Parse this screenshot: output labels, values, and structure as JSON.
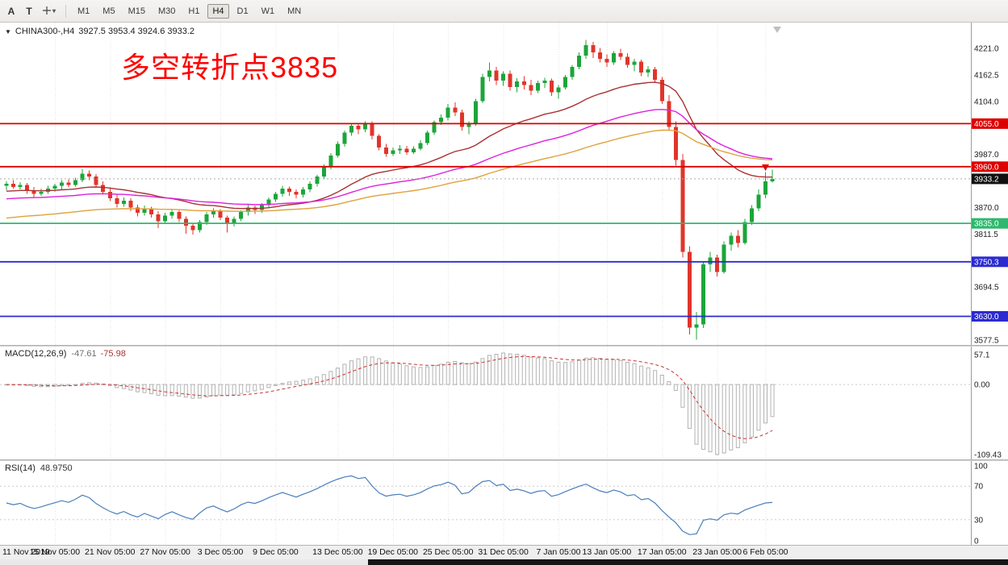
{
  "toolbar": {
    "buttons": [
      {
        "label": "A"
      },
      {
        "label": "T"
      }
    ],
    "dropdown_caret": "▾",
    "timeframes": [
      {
        "label": "M1",
        "active": false
      },
      {
        "label": "M5",
        "active": false
      },
      {
        "label": "M15",
        "active": false
      },
      {
        "label": "M30",
        "active": false
      },
      {
        "label": "H1",
        "active": false
      },
      {
        "label": "H4",
        "active": true
      },
      {
        "label": "D1",
        "active": false
      },
      {
        "label": "W1",
        "active": false
      },
      {
        "label": "MN",
        "active": false
      }
    ]
  },
  "chart_header": {
    "dropdown_glyph": "▼",
    "symbol": "CHINA300-,H4",
    "ohlc": "3927.5 3953.4 3924.6 3933.2"
  },
  "annotation": {
    "text": "多空转折点3835",
    "color": "#ff0000"
  },
  "indicators": {
    "macd_name": "MACD(12,26,9)",
    "macd_main": "-47.61",
    "macd_signal": "-75.98",
    "rsi_name": "RSI(14)",
    "rsi_value": "48.9750"
  },
  "chart_data": {
    "type": "candlestick",
    "symbol": "CHINA300-",
    "timeframe": "H4",
    "current_bar": {
      "open": 3927.5,
      "high": 3953.4,
      "low": 3924.6,
      "close": 3933.2
    },
    "price_axis": {
      "ticks": [
        "4221.0",
        "4162.5",
        "4104.0",
        "3987.0",
        "3870.0",
        "3811.5",
        "3694.5",
        "3577.5"
      ],
      "tick_values": [
        4221.0,
        4162.5,
        4104.0,
        3987.0,
        3870.0,
        3811.5,
        3694.5,
        3577.5
      ]
    },
    "level_lines": [
      {
        "price": 4055.0,
        "label": "4055.0",
        "color": "#dd0000"
      },
      {
        "price": 3960.0,
        "label": "3960.0",
        "color": "#dd0000"
      },
      {
        "price": 3835.0,
        "label": "3835.0",
        "color": "#2eb86e"
      },
      {
        "price": 3750.3,
        "label": "3750.3",
        "color": "#2b2bd0"
      },
      {
        "price": 3630.0,
        "label": "3630.0",
        "color": "#2b2bd0"
      }
    ],
    "current_price": {
      "value": 3933.2,
      "label": "3933.2",
      "box_color": "#111111"
    },
    "moving_averages": [
      {
        "name": "ma-fast-darkred",
        "period": 30,
        "seed": 3905,
        "color": "#a83232"
      },
      {
        "name": "ma-mid-magenta",
        "period": 60,
        "seed": 3888,
        "color": "#dd22dd"
      },
      {
        "name": "ma-slow-orange",
        "period": 90,
        "seed": 3845,
        "color": "#dfa23a"
      }
    ],
    "macd": {
      "params": [
        12,
        26,
        9
      ],
      "current_main": -47.61,
      "current_signal": -75.98,
      "axis_labels": [
        "57.1",
        "0.00",
        "-109.43"
      ],
      "histogram_color": "#b2b2b2",
      "signal_color": "#cc3333"
    },
    "rsi": {
      "period": 14,
      "current": 48.975,
      "axis_labels": [
        "100",
        "70",
        "30",
        "0"
      ],
      "levels": [
        70,
        30
      ],
      "line_color": "#4a7ebb"
    },
    "time_axis": {
      "labels": [
        {
          "text": "11 Nov 2019",
          "index": 0
        },
        {
          "text": "15 Nov 05:00",
          "index": 7
        },
        {
          "text": "21 Nov 05:00",
          "index": 15
        },
        {
          "text": "27 Nov 05:00",
          "index": 23
        },
        {
          "text": "3 Dec 05:00",
          "index": 31
        },
        {
          "text": "9 Dec 05:00",
          "index": 39
        },
        {
          "text": "13 Dec 05:00",
          "index": 48
        },
        {
          "text": "19 Dec 05:00",
          "index": 56
        },
        {
          "text": "25 Dec 05:00",
          "index": 64
        },
        {
          "text": "31 Dec 05:00",
          "index": 72
        },
        {
          "text": "7 Jan 05:00",
          "index": 80
        },
        {
          "text": "13 Jan 05:00",
          "index": 87
        },
        {
          "text": "17 Jan 05:00",
          "index": 95
        },
        {
          "text": "23 Jan 05:00",
          "index": 103
        },
        {
          "text": "6 Feb 05:00",
          "index": 110
        }
      ]
    },
    "candles_ohlc": [
      [
        3918,
        3928,
        3908,
        3922
      ],
      [
        3922,
        3930,
        3912,
        3915
      ],
      [
        3915,
        3926,
        3910,
        3920
      ],
      [
        3920,
        3924,
        3900,
        3908
      ],
      [
        3908,
        3915,
        3893,
        3900
      ],
      [
        3900,
        3912,
        3896,
        3905
      ],
      [
        3905,
        3918,
        3900,
        3912
      ],
      [
        3912,
        3922,
        3905,
        3918
      ],
      [
        3918,
        3930,
        3910,
        3925
      ],
      [
        3925,
        3932,
        3914,
        3920
      ],
      [
        3920,
        3936,
        3916,
        3930
      ],
      [
        3930,
        3955,
        3926,
        3945
      ],
      [
        3945,
        3952,
        3930,
        3938
      ],
      [
        3938,
        3944,
        3915,
        3920
      ],
      [
        3920,
        3928,
        3898,
        3905
      ],
      [
        3905,
        3912,
        3884,
        3890
      ],
      [
        3890,
        3898,
        3870,
        3878
      ],
      [
        3878,
        3892,
        3872,
        3885
      ],
      [
        3885,
        3890,
        3862,
        3870
      ],
      [
        3870,
        3876,
        3850,
        3858
      ],
      [
        3858,
        3874,
        3852,
        3868
      ],
      [
        3868,
        3872,
        3848,
        3855
      ],
      [
        3855,
        3862,
        3825,
        3840
      ],
      [
        3840,
        3858,
        3834,
        3852
      ],
      [
        3852,
        3866,
        3845,
        3860
      ],
      [
        3860,
        3864,
        3838,
        3845
      ],
      [
        3845,
        3850,
        3812,
        3830
      ],
      [
        3830,
        3836,
        3810,
        3820
      ],
      [
        3820,
        3842,
        3815,
        3838
      ],
      [
        3838,
        3860,
        3832,
        3855
      ],
      [
        3855,
        3868,
        3848,
        3862
      ],
      [
        3862,
        3866,
        3842,
        3848
      ],
      [
        3848,
        3852,
        3815,
        3835
      ],
      [
        3835,
        3850,
        3828,
        3845
      ],
      [
        3845,
        3864,
        3840,
        3860
      ],
      [
        3860,
        3876,
        3852,
        3870
      ],
      [
        3870,
        3874,
        3856,
        3865
      ],
      [
        3865,
        3880,
        3858,
        3875
      ],
      [
        3875,
        3892,
        3868,
        3888
      ],
      [
        3888,
        3905,
        3882,
        3900
      ],
      [
        3900,
        3918,
        3894,
        3912
      ],
      [
        3912,
        3916,
        3896,
        3905
      ],
      [
        3905,
        3910,
        3890,
        3898
      ],
      [
        3898,
        3915,
        3892,
        3910
      ],
      [
        3910,
        3928,
        3904,
        3922
      ],
      [
        3922,
        3942,
        3916,
        3938
      ],
      [
        3938,
        3965,
        3932,
        3960
      ],
      [
        3960,
        3990,
        3954,
        3985
      ],
      [
        3985,
        4016,
        3980,
        4010
      ],
      [
        4010,
        4040,
        4004,
        4035
      ],
      [
        4035,
        4056,
        4028,
        4050
      ],
      [
        4050,
        4055,
        4032,
        4042
      ],
      [
        4042,
        4060,
        4036,
        4055
      ],
      [
        4055,
        4060,
        4020,
        4028
      ],
      [
        4028,
        4032,
        3996,
        4002
      ],
      [
        4002,
        4010,
        3982,
        3988
      ],
      [
        3988,
        4002,
        3984,
        3996
      ],
      [
        3996,
        4008,
        3988,
        4000
      ],
      [
        4000,
        4006,
        3986,
        3992
      ],
      [
        3992,
        4005,
        3988,
        4000
      ],
      [
        4000,
        4018,
        3996,
        4012
      ],
      [
        4012,
        4040,
        4008,
        4035
      ],
      [
        4035,
        4062,
        4030,
        4058
      ],
      [
        4058,
        4075,
        4052,
        4068
      ],
      [
        4068,
        4098,
        4062,
        4090
      ],
      [
        4090,
        4102,
        4072,
        4080
      ],
      [
        4080,
        4086,
        4040,
        4048
      ],
      [
        4048,
        4060,
        4032,
        4056
      ],
      [
        4056,
        4110,
        4050,
        4105
      ],
      [
        4105,
        4165,
        4100,
        4158
      ],
      [
        4158,
        4190,
        4148,
        4172
      ],
      [
        4172,
        4180,
        4140,
        4150
      ],
      [
        4150,
        4170,
        4138,
        4165
      ],
      [
        4165,
        4172,
        4128,
        4136
      ],
      [
        4136,
        4155,
        4124,
        4148
      ],
      [
        4148,
        4160,
        4130,
        4140
      ],
      [
        4140,
        4152,
        4118,
        4128
      ],
      [
        4128,
        4150,
        4122,
        4145
      ],
      [
        4145,
        4156,
        4134,
        4150
      ],
      [
        4150,
        4154,
        4116,
        4124
      ],
      [
        4124,
        4140,
        4110,
        4135
      ],
      [
        4135,
        4162,
        4130,
        4158
      ],
      [
        4158,
        4185,
        4152,
        4180
      ],
      [
        4180,
        4212,
        4175,
        4205
      ],
      [
        4205,
        4240,
        4198,
        4228
      ],
      [
        4228,
        4235,
        4200,
        4212
      ],
      [
        4212,
        4222,
        4190,
        4198
      ],
      [
        4198,
        4208,
        4180,
        4190
      ],
      [
        4190,
        4215,
        4185,
        4210
      ],
      [
        4210,
        4220,
        4195,
        4202
      ],
      [
        4202,
        4210,
        4178,
        4185
      ],
      [
        4185,
        4198,
        4170,
        4192
      ],
      [
        4192,
        4196,
        4160,
        4168
      ],
      [
        4168,
        4182,
        4158,
        4175
      ],
      [
        4175,
        4180,
        4145,
        4152
      ],
      [
        4152,
        4158,
        4098,
        4105
      ],
      [
        4105,
        4118,
        4040,
        4048
      ],
      [
        4048,
        4060,
        3962,
        3975
      ],
      [
        3975,
        3988,
        3760,
        3772
      ],
      [
        3772,
        3785,
        3590,
        3605
      ],
      [
        3605,
        3640,
        3578,
        3612
      ],
      [
        3612,
        3752,
        3604,
        3745
      ],
      [
        3745,
        3772,
        3728,
        3760
      ],
      [
        3760,
        3766,
        3718,
        3728
      ],
      [
        3728,
        3795,
        3724,
        3788
      ],
      [
        3788,
        3815,
        3775,
        3808
      ],
      [
        3808,
        3820,
        3782,
        3792
      ],
      [
        3792,
        3845,
        3788,
        3838
      ],
      [
        3838,
        3875,
        3832,
        3868
      ],
      [
        3868,
        3910,
        3862,
        3898
      ],
      [
        3898,
        3948,
        3890,
        3927.5
      ],
      [
        3927.5,
        3953.4,
        3924.6,
        3933.2
      ]
    ]
  }
}
